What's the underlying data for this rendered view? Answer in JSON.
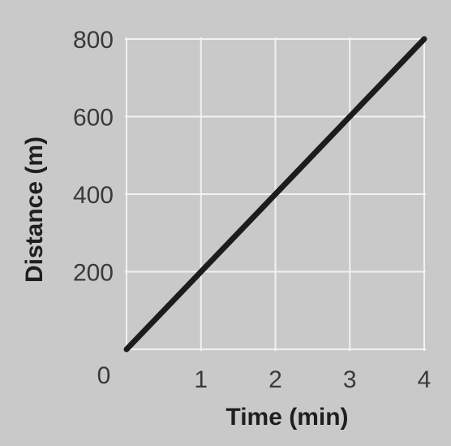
{
  "chart_data": {
    "type": "line",
    "title": "",
    "xlabel": "Time (min)",
    "ylabel": "Distance (m)",
    "xlim": [
      0,
      4
    ],
    "ylim": [
      0,
      800
    ],
    "x_ticks": [
      {
        "value": 0,
        "label": "0"
      },
      {
        "value": 1,
        "label": "1"
      },
      {
        "value": 2,
        "label": "2"
      },
      {
        "value": 3,
        "label": "3"
      },
      {
        "value": 4,
        "label": "4"
      }
    ],
    "y_ticks": [
      {
        "value": 200,
        "label": "200"
      },
      {
        "value": 400,
        "label": "400"
      },
      {
        "value": 600,
        "label": "600"
      },
      {
        "value": 800,
        "label": "800"
      }
    ],
    "grid": true,
    "legend": "none",
    "colors": {
      "background": "#c9c9c9",
      "grid": "#f2f2f2",
      "line": "#1c1c1c"
    },
    "series": [
      {
        "x": [
          0,
          1,
          2,
          3,
          4
        ],
        "y": [
          0,
          200,
          400,
          600,
          800
        ]
      }
    ]
  }
}
